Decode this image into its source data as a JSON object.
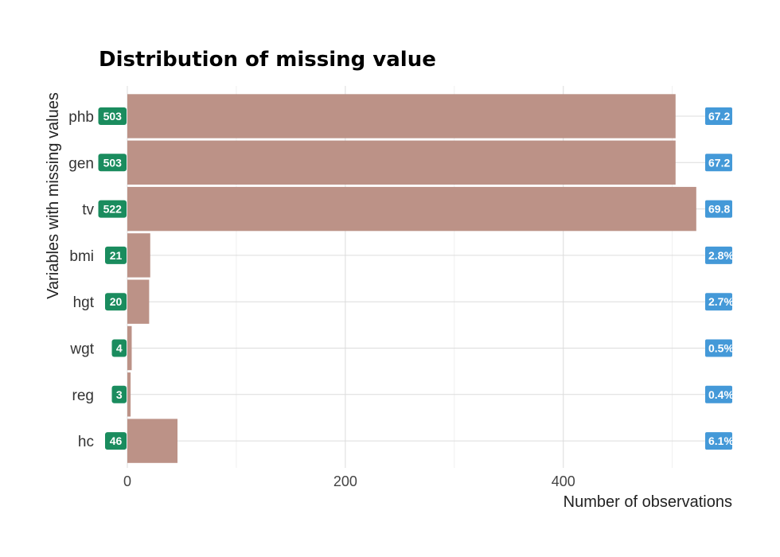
{
  "chart_data": {
    "type": "bar",
    "title": "Distribution of missing value",
    "xlabel": "Number of observations",
    "ylabel": "Variables with missing values",
    "xlim": [
      0,
      555
    ],
    "xticks": [
      0,
      200,
      400
    ],
    "grid": true,
    "categories": [
      "phb",
      "gen",
      "tv",
      "bmi",
      "hgt",
      "wgt",
      "reg",
      "hc"
    ],
    "values": [
      503,
      503,
      522,
      21,
      20,
      4,
      3,
      46
    ],
    "count_labels": [
      "503",
      "503",
      "522",
      "21",
      "20",
      "4",
      "3",
      "46"
    ],
    "percent_labels": [
      "67.2",
      "67.2",
      "69.8",
      "2.8%",
      "2.7%",
      "0.5%",
      "0.4%",
      "6.1%"
    ],
    "bar_color": "#bc9287",
    "count_badge_color": "#1a8c5e",
    "percent_badge_color": "#4499d8"
  }
}
